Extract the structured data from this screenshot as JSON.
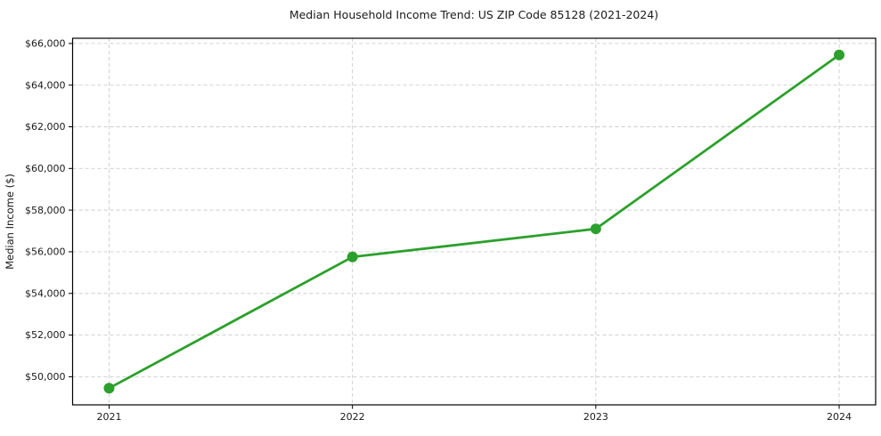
{
  "chart_data": {
    "type": "line",
    "title": "Median Household Income Trend: US ZIP Code 85128 (2021-2024)",
    "ylabel": "Median Income ($)",
    "x": [
      2021,
      2022,
      2023,
      2024
    ],
    "xtick_labels": [
      "2021",
      "2022",
      "2023",
      "2024"
    ],
    "series": [
      {
        "name": "Median Income",
        "values": [
          49450,
          55750,
          57100,
          65450
        ]
      }
    ],
    "yticks": [
      50000,
      52000,
      54000,
      56000,
      58000,
      60000,
      62000,
      64000,
      66000
    ],
    "ytick_labels": [
      "$50,000",
      "$52,000",
      "$54,000",
      "$56,000",
      "$58,000",
      "$60,000",
      "$62,000",
      "$64,000",
      "$66,000"
    ],
    "ylim": [
      48650,
      66250
    ],
    "grid": "dashed, both axes",
    "legend": "none",
    "line_color": "#2ca02c",
    "marker": "circle",
    "grid_color": "#cccccc",
    "frame_color": "#000000"
  }
}
